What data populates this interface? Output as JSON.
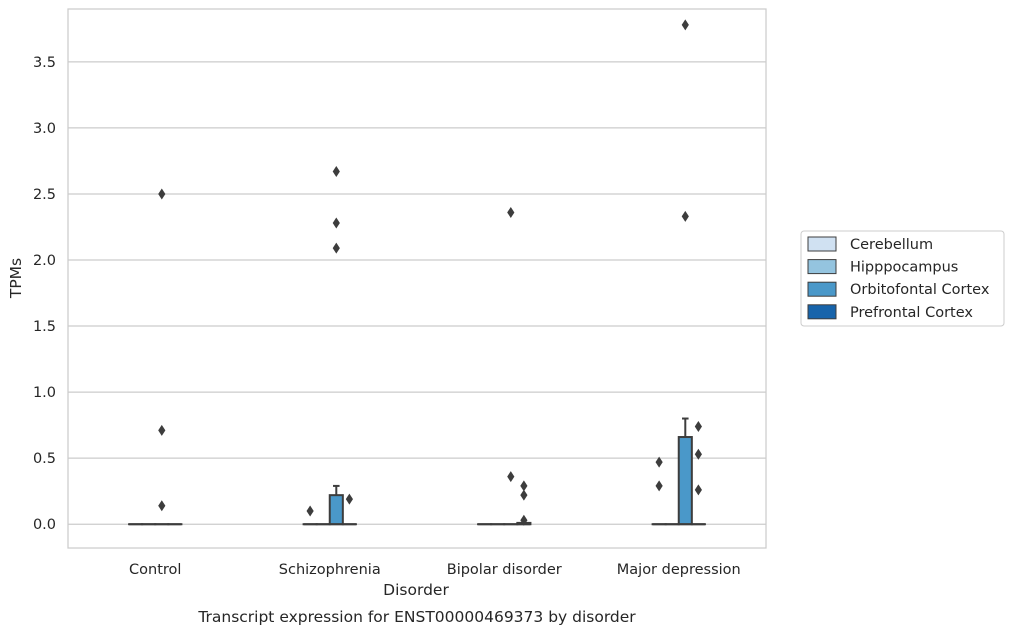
{
  "chart_data": {
    "type": "box",
    "caption": "Transcript expression for ENST00000469373 by disorder",
    "xlabel": "Disorder",
    "ylabel": "TPMs",
    "categories": [
      "Control",
      "Schizophrenia",
      "Bipolar disorder",
      "Major depression"
    ],
    "ylim": [
      -0.18,
      3.9
    ],
    "yticks": [
      0.0,
      0.5,
      1.0,
      1.5,
      2.0,
      2.5,
      3.0,
      3.5
    ],
    "ytick_labels": [
      "0.0",
      "0.5",
      "1.0",
      "1.5",
      "2.0",
      "2.5",
      "3.0",
      "3.5"
    ],
    "grid": "horizontal",
    "legend_position": "right",
    "series": [
      {
        "name": "Cerebellum",
        "color": "#d0e1f2"
      },
      {
        "name": "Hipppocampus",
        "color": "#94c4df"
      },
      {
        "name": "Orbitofontal Cortex",
        "color": "#4a98c9"
      },
      {
        "name": "Prefrontal Cortex",
        "color": "#1764ab"
      }
    ],
    "boxes": [
      {
        "category": "Control",
        "series": "Cerebellum",
        "q1": 0,
        "median": 0,
        "q3": 0,
        "whislo": 0,
        "whishi": 0,
        "fliers": []
      },
      {
        "category": "Control",
        "series": "Hipppocampus",
        "q1": 0,
        "median": 0,
        "q3": 0,
        "whislo": 0,
        "whishi": 0,
        "fliers": []
      },
      {
        "category": "Control",
        "series": "Orbitofontal Cortex",
        "q1": 0,
        "median": 0,
        "q3": 0,
        "whislo": 0,
        "whishi": 0,
        "fliers": [
          2.5,
          0.71,
          0.14
        ]
      },
      {
        "category": "Control",
        "series": "Prefrontal Cortex",
        "q1": 0,
        "median": 0,
        "q3": 0,
        "whislo": 0,
        "whishi": 0,
        "fliers": []
      },
      {
        "category": "Schizophrenia",
        "series": "Cerebellum",
        "q1": 0,
        "median": 0,
        "q3": 0,
        "whislo": 0,
        "whishi": 0,
        "fliers": [
          0.1
        ]
      },
      {
        "category": "Schizophrenia",
        "series": "Hipppocampus",
        "q1": 0,
        "median": 0,
        "q3": 0,
        "whislo": 0,
        "whishi": 0,
        "fliers": []
      },
      {
        "category": "Schizophrenia",
        "series": "Orbitofontal Cortex",
        "q1": 0,
        "median": 0,
        "q3": 0.22,
        "whislo": 0,
        "whishi": 0.29,
        "fliers": [
          2.67,
          2.28,
          2.09
        ]
      },
      {
        "category": "Schizophrenia",
        "series": "Prefrontal Cortex",
        "q1": 0,
        "median": 0,
        "q3": 0,
        "whislo": 0,
        "whishi": 0,
        "fliers": [
          0.19
        ]
      },
      {
        "category": "Bipolar disorder",
        "series": "Cerebellum",
        "q1": 0,
        "median": 0,
        "q3": 0,
        "whislo": 0,
        "whishi": 0,
        "fliers": []
      },
      {
        "category": "Bipolar disorder",
        "series": "Hipppocampus",
        "q1": 0,
        "median": 0,
        "q3": 0,
        "whislo": 0,
        "whishi": 0,
        "fliers": []
      },
      {
        "category": "Bipolar disorder",
        "series": "Orbitofontal Cortex",
        "q1": 0,
        "median": 0,
        "q3": 0,
        "whislo": 0,
        "whishi": 0,
        "fliers": [
          2.36,
          0.36
        ]
      },
      {
        "category": "Bipolar disorder",
        "series": "Prefrontal Cortex",
        "q1": 0,
        "median": 0,
        "q3": 0.01,
        "whislo": 0,
        "whishi": 0.01,
        "fliers": [
          0.29,
          0.22,
          0.03
        ]
      },
      {
        "category": "Major depression",
        "series": "Cerebellum",
        "q1": 0,
        "median": 0,
        "q3": 0,
        "whislo": 0,
        "whishi": 0,
        "fliers": [
          0.47,
          0.29
        ]
      },
      {
        "category": "Major depression",
        "series": "Hipppocampus",
        "q1": 0,
        "median": 0,
        "q3": 0,
        "whislo": 0,
        "whishi": 0,
        "fliers": []
      },
      {
        "category": "Major depression",
        "series": "Orbitofontal Cortex",
        "q1": 0,
        "median": 0,
        "q3": 0.66,
        "whislo": 0,
        "whishi": 0.8,
        "fliers": [
          3.78,
          2.33
        ]
      },
      {
        "category": "Major depression",
        "series": "Prefrontal Cortex",
        "q1": 0,
        "median": 0,
        "q3": 0,
        "whislo": 0,
        "whishi": 0,
        "fliers": [
          0.74,
          0.53,
          0.26
        ]
      }
    ]
  }
}
